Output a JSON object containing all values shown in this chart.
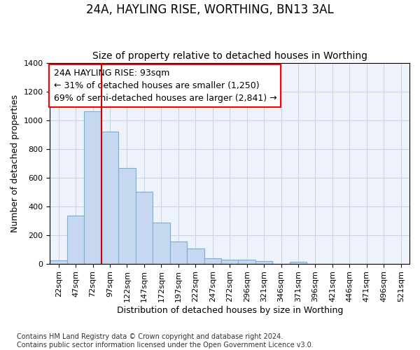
{
  "title": "24A, HAYLING RISE, WORTHING, BN13 3AL",
  "subtitle": "Size of property relative to detached houses in Worthing",
  "xlabel": "Distribution of detached houses by size in Worthing",
  "ylabel": "Number of detached properties",
  "footer": "Contains HM Land Registry data © Crown copyright and database right 2024.\nContains public sector information licensed under the Open Government Licence v3.0.",
  "bar_categories": [
    "22sqm",
    "47sqm",
    "72sqm",
    "97sqm",
    "122sqm",
    "147sqm",
    "172sqm",
    "197sqm",
    "222sqm",
    "247sqm",
    "272sqm",
    "296sqm",
    "321sqm",
    "346sqm",
    "371sqm",
    "396sqm",
    "421sqm",
    "446sqm",
    "471sqm",
    "496sqm",
    "521sqm"
  ],
  "bar_values": [
    22,
    335,
    1060,
    920,
    665,
    500,
    285,
    155,
    105,
    38,
    25,
    25,
    18,
    0,
    12,
    0,
    0,
    0,
    0,
    0,
    0
  ],
  "bar_color": "#c5d8f0",
  "bar_edge_color": "#7aafd4",
  "vline_color": "#cc0000",
  "ylim": [
    0,
    1400
  ],
  "yticks": [
    0,
    200,
    400,
    600,
    800,
    1000,
    1200,
    1400
  ],
  "annotation_line1": "24A HAYLING RISE: 93sqm",
  "annotation_line2": "← 31% of detached houses are smaller (1,250)",
  "annotation_line3": "69% of semi-detached houses are larger (2,841) →",
  "grid_color": "#c8d0e8",
  "bg_color": "#eef2fb",
  "title_fontsize": 12,
  "subtitle_fontsize": 10,
  "axis_label_fontsize": 9,
  "tick_fontsize": 8,
  "annotation_fontsize": 9,
  "footer_fontsize": 7
}
